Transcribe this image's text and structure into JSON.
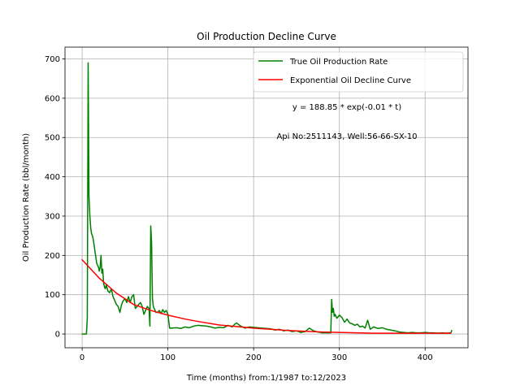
{
  "chart_data": {
    "type": "line",
    "title": "Oil Production Decline Curve",
    "xlabel": "Time (months) from:1/1987 to:12/2023",
    "ylabel": "Oil Production Rate (bbl/month)",
    "xlim": [
      -20,
      450
    ],
    "ylim": [
      -35,
      730
    ],
    "x_ticks": [
      0,
      100,
      200,
      300,
      400
    ],
    "y_ticks": [
      0,
      100,
      200,
      300,
      400,
      500,
      600,
      700
    ],
    "x_tick_labels": [
      "0",
      "100",
      "200",
      "300",
      "400"
    ],
    "y_tick_labels": [
      "0",
      "100",
      "200",
      "300",
      "400",
      "500",
      "600",
      "700"
    ],
    "grid": true,
    "legend_position": "top-right",
    "annotations": [
      "y = 188.85 * exp(-0.01 * t)",
      "Api No:2511143, Well:56-66-SX-10"
    ],
    "series": [
      {
        "name": "True Oil Production Rate",
        "color": "#008000",
        "x": [
          0,
          3,
          5,
          6,
          7,
          8,
          9,
          10,
          11,
          12,
          13,
          14,
          15,
          16,
          17,
          18,
          19,
          20,
          21,
          22,
          23,
          24,
          25,
          26,
          27,
          28,
          30,
          32,
          34,
          36,
          38,
          40,
          42,
          44,
          46,
          48,
          50,
          52,
          54,
          56,
          58,
          60,
          62,
          64,
          66,
          68,
          70,
          72,
          74,
          76,
          78,
          79,
          80,
          81,
          82,
          83,
          84,
          85,
          86,
          88,
          90,
          92,
          94,
          96,
          98,
          100,
          102,
          104,
          110,
          115,
          120,
          125,
          130,
          135,
          140,
          145,
          150,
          155,
          160,
          165,
          170,
          175,
          178,
          180,
          185,
          190,
          195,
          200,
          205,
          210,
          215,
          220,
          225,
          230,
          235,
          240,
          245,
          250,
          255,
          260,
          265,
          270,
          275,
          280,
          285,
          288,
          290,
          291,
          292,
          293,
          294,
          295,
          297,
          300,
          303,
          306,
          309,
          312,
          315,
          318,
          321,
          324,
          327,
          330,
          333,
          336,
          340,
          345,
          350,
          355,
          360,
          365,
          370,
          375,
          380,
          385,
          390,
          395,
          400,
          405,
          410,
          415,
          420,
          425,
          430,
          431
        ],
        "values": [
          0,
          0,
          0,
          40,
          690,
          350,
          300,
          270,
          255,
          250,
          240,
          225,
          210,
          195,
          180,
          175,
          170,
          160,
          170,
          200,
          155,
          165,
          130,
          120,
          115,
          125,
          110,
          105,
          115,
          95,
          85,
          75,
          70,
          55,
          75,
          85,
          90,
          80,
          95,
          80,
          95,
          100,
          65,
          70,
          75,
          80,
          70,
          50,
          60,
          70,
          65,
          20,
          275,
          230,
          90,
          70,
          65,
          60,
          55,
          55,
          60,
          52,
          62,
          55,
          60,
          50,
          15,
          15,
          16,
          14,
          18,
          16,
          20,
          22,
          21,
          20,
          18,
          15,
          17,
          16,
          22,
          18,
          25,
          28,
          20,
          15,
          18,
          17,
          16,
          15,
          14,
          13,
          10,
          12,
          8,
          10,
          6,
          8,
          4,
          6,
          15,
          8,
          5,
          3,
          3,
          3,
          3,
          88,
          55,
          65,
          45,
          50,
          40,
          48,
          42,
          30,
          38,
          28,
          26,
          22,
          25,
          18,
          20,
          15,
          35,
          12,
          18,
          14,
          16,
          12,
          10,
          8,
          5,
          4,
          3,
          4,
          3,
          3,
          4,
          3,
          3,
          2,
          3,
          2,
          3,
          9
        ]
      },
      {
        "name": "Exponential Oil Decline Curve",
        "color": "#ff0000",
        "x": [
          0,
          20,
          40,
          60,
          80,
          100,
          120,
          140,
          160,
          180,
          200,
          220,
          240,
          260,
          280,
          300,
          320,
          340,
          360,
          380,
          400,
          420,
          430
        ],
        "values": [
          188.85,
          142,
          104,
          75,
          60,
          48,
          38,
          30,
          23,
          19,
          15,
          12,
          9,
          7,
          5,
          4,
          3,
          2,
          2,
          2,
          2,
          2,
          2
        ]
      }
    ]
  }
}
